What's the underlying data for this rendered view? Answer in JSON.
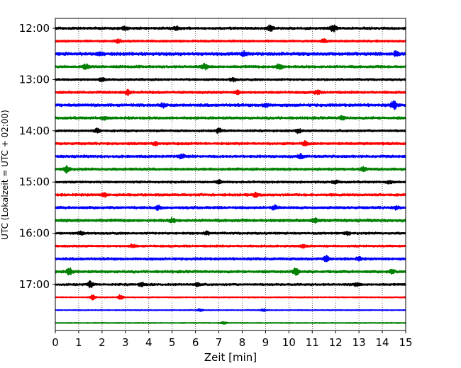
{
  "chart_data": {
    "type": "line",
    "title": "",
    "xlabel": "Zeit  [min]",
    "ylabel": "UTC (Lokalzeit = UTC + 02:00)",
    "xlim": [
      0,
      15
    ],
    "x_ticks": [
      0,
      1,
      2,
      3,
      4,
      5,
      6,
      7,
      8,
      9,
      10,
      11,
      12,
      13,
      14,
      15
    ],
    "x_tick_labels": [
      "0",
      "1",
      "2",
      "3",
      "4",
      "5",
      "6",
      "7",
      "8",
      "9",
      "10",
      "11",
      "12",
      "13",
      "14",
      "15"
    ],
    "y_tick_labels": [
      "12:00",
      "13:00",
      "14:00",
      "15:00",
      "16:00",
      "17:00"
    ],
    "y_tick_rows": [
      0,
      4,
      8,
      12,
      16,
      20
    ],
    "grid_x": true,
    "trace_interval_minutes": 15,
    "trace_count": 24,
    "trace_colors": [
      "#000000",
      "#ff0000",
      "#0000ff",
      "#008000"
    ],
    "traces": [
      {
        "start": "12:00",
        "color": "#000000",
        "amplitude": 0.35,
        "bursts": [
          {
            "x": 3.0,
            "a": 0.7
          },
          {
            "x": 9.2,
            "a": 1.0
          },
          {
            "x": 11.9,
            "a": 1.1
          },
          {
            "x": 5.2,
            "a": 0.5
          }
        ]
      },
      {
        "start": "12:15",
        "color": "#ff0000",
        "amplitude": 0.3,
        "bursts": [
          {
            "x": 2.7,
            "a": 0.5
          },
          {
            "x": 11.5,
            "a": 0.7
          }
        ]
      },
      {
        "start": "12:30",
        "color": "#0000ff",
        "amplitude": 0.45,
        "bursts": [
          {
            "x": 1.9,
            "a": 0.6
          },
          {
            "x": 8.1,
            "a": 0.6
          },
          {
            "x": 14.6,
            "a": 0.7
          }
        ]
      },
      {
        "start": "12:45",
        "color": "#008000",
        "amplitude": 0.35,
        "bursts": [
          {
            "x": 1.3,
            "a": 1.0
          },
          {
            "x": 6.4,
            "a": 0.9
          },
          {
            "x": 9.6,
            "a": 1.2
          }
        ]
      },
      {
        "start": "13:00",
        "color": "#000000",
        "amplitude": 0.3,
        "bursts": [
          {
            "x": 2.0,
            "a": 0.5
          },
          {
            "x": 7.6,
            "a": 0.6
          }
        ]
      },
      {
        "start": "13:15",
        "color": "#ff0000",
        "amplitude": 0.35,
        "bursts": [
          {
            "x": 3.1,
            "a": 0.8
          },
          {
            "x": 7.8,
            "a": 0.6
          },
          {
            "x": 11.2,
            "a": 0.6
          }
        ]
      },
      {
        "start": "13:30",
        "color": "#0000ff",
        "amplitude": 0.4,
        "bursts": [
          {
            "x": 4.6,
            "a": 0.6
          },
          {
            "x": 9.0,
            "a": 0.6
          },
          {
            "x": 14.5,
            "a": 1.3
          }
        ]
      },
      {
        "start": "13:45",
        "color": "#008000",
        "amplitude": 0.35,
        "bursts": [
          {
            "x": 2.1,
            "a": 0.5
          },
          {
            "x": 12.3,
            "a": 0.6
          }
        ]
      },
      {
        "start": "14:00",
        "color": "#000000",
        "amplitude": 0.3,
        "bursts": [
          {
            "x": 1.8,
            "a": 0.7
          },
          {
            "x": 7.0,
            "a": 0.8
          },
          {
            "x": 10.4,
            "a": 0.9
          }
        ]
      },
      {
        "start": "14:15",
        "color": "#ff0000",
        "amplitude": 0.35,
        "bursts": [
          {
            "x": 4.3,
            "a": 0.6
          },
          {
            "x": 10.7,
            "a": 0.7
          }
        ]
      },
      {
        "start": "14:30",
        "color": "#0000ff",
        "amplitude": 0.35,
        "bursts": [
          {
            "x": 5.4,
            "a": 0.7
          },
          {
            "x": 10.5,
            "a": 0.7
          }
        ]
      },
      {
        "start": "14:45",
        "color": "#008000",
        "amplitude": 0.35,
        "bursts": [
          {
            "x": 0.5,
            "a": 1.1
          },
          {
            "x": 13.2,
            "a": 0.6
          }
        ]
      },
      {
        "start": "15:00",
        "color": "#000000",
        "amplitude": 0.3,
        "bursts": [
          {
            "x": 7.0,
            "a": 0.5
          },
          {
            "x": 12.0,
            "a": 0.6
          },
          {
            "x": 14.3,
            "a": 0.5
          }
        ]
      },
      {
        "start": "15:15",
        "color": "#ff0000",
        "amplitude": 0.35,
        "bursts": [
          {
            "x": 2.1,
            "a": 0.6
          },
          {
            "x": 8.6,
            "a": 0.6
          }
        ]
      },
      {
        "start": "15:30",
        "color": "#0000ff",
        "amplitude": 0.35,
        "bursts": [
          {
            "x": 4.4,
            "a": 0.6
          },
          {
            "x": 9.4,
            "a": 0.6
          },
          {
            "x": 14.6,
            "a": 0.5
          }
        ]
      },
      {
        "start": "15:45",
        "color": "#008000",
        "amplitude": 0.4,
        "bursts": [
          {
            "x": 5.0,
            "a": 0.6
          },
          {
            "x": 11.1,
            "a": 0.6
          }
        ]
      },
      {
        "start": "16:00",
        "color": "#000000",
        "amplitude": 0.3,
        "bursts": [
          {
            "x": 1.1,
            "a": 0.5
          },
          {
            "x": 6.5,
            "a": 0.5
          },
          {
            "x": 12.5,
            "a": 0.5
          }
        ]
      },
      {
        "start": "16:15",
        "color": "#ff0000",
        "amplitude": 0.3,
        "bursts": [
          {
            "x": 3.3,
            "a": 0.5
          },
          {
            "x": 10.6,
            "a": 0.5
          }
        ]
      },
      {
        "start": "16:30",
        "color": "#0000ff",
        "amplitude": 0.35,
        "bursts": [
          {
            "x": 11.6,
            "a": 0.9
          },
          {
            "x": 13.0,
            "a": 0.5
          }
        ]
      },
      {
        "start": "16:45",
        "color": "#008000",
        "amplitude": 0.35,
        "bursts": [
          {
            "x": 0.6,
            "a": 1.2
          },
          {
            "x": 10.3,
            "a": 1.4
          },
          {
            "x": 14.4,
            "a": 0.6
          }
        ]
      },
      {
        "start": "17:00",
        "color": "#000000",
        "amplitude": 0.3,
        "bursts": [
          {
            "x": 1.5,
            "a": 1.0
          },
          {
            "x": 3.7,
            "a": 0.6
          },
          {
            "x": 6.1,
            "a": 0.6
          },
          {
            "x": 12.9,
            "a": 0.5
          }
        ]
      },
      {
        "start": "17:15",
        "color": "#ff0000",
        "amplitude": 0.15,
        "bursts": [
          {
            "x": 1.6,
            "a": 0.9
          },
          {
            "x": 2.8,
            "a": 0.9
          }
        ]
      },
      {
        "start": "17:30",
        "color": "#0000ff",
        "amplitude": 0.12,
        "bursts": [
          {
            "x": 6.2,
            "a": 0.4
          },
          {
            "x": 8.9,
            "a": 0.4
          }
        ]
      },
      {
        "start": "17:45",
        "color": "#008000",
        "amplitude": 0.12,
        "bursts": [
          {
            "x": 7.2,
            "a": 0.4
          }
        ]
      }
    ]
  }
}
